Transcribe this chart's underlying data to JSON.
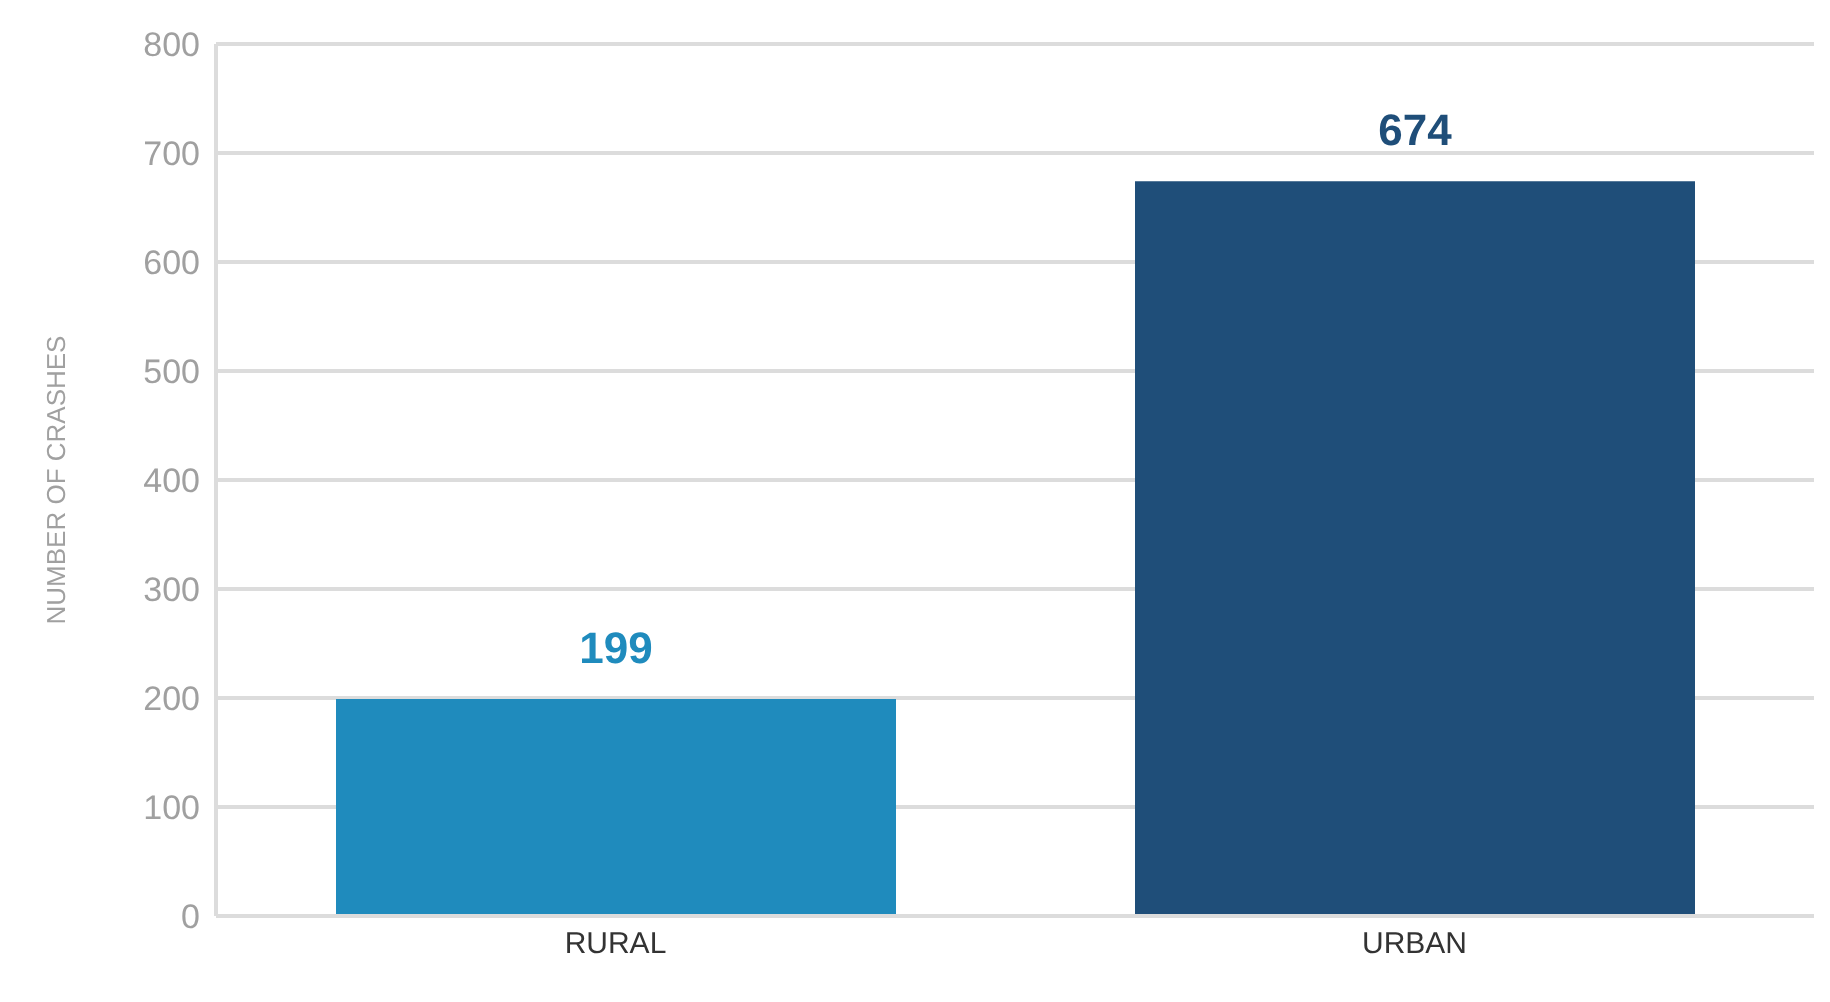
{
  "chart_data": {
    "type": "bar",
    "ylabel": "NUMBER OF CRASHES",
    "categories": [
      "RURAL",
      "URBAN"
    ],
    "values": [
      199,
      674
    ],
    "colors": [
      "#1f8bbd",
      "#1f4e79"
    ],
    "ylim": [
      0,
      800
    ],
    "yticks": [
      0,
      100,
      200,
      300,
      400,
      500,
      600,
      700,
      800
    ],
    "grid": "y",
    "data_labels": true
  }
}
